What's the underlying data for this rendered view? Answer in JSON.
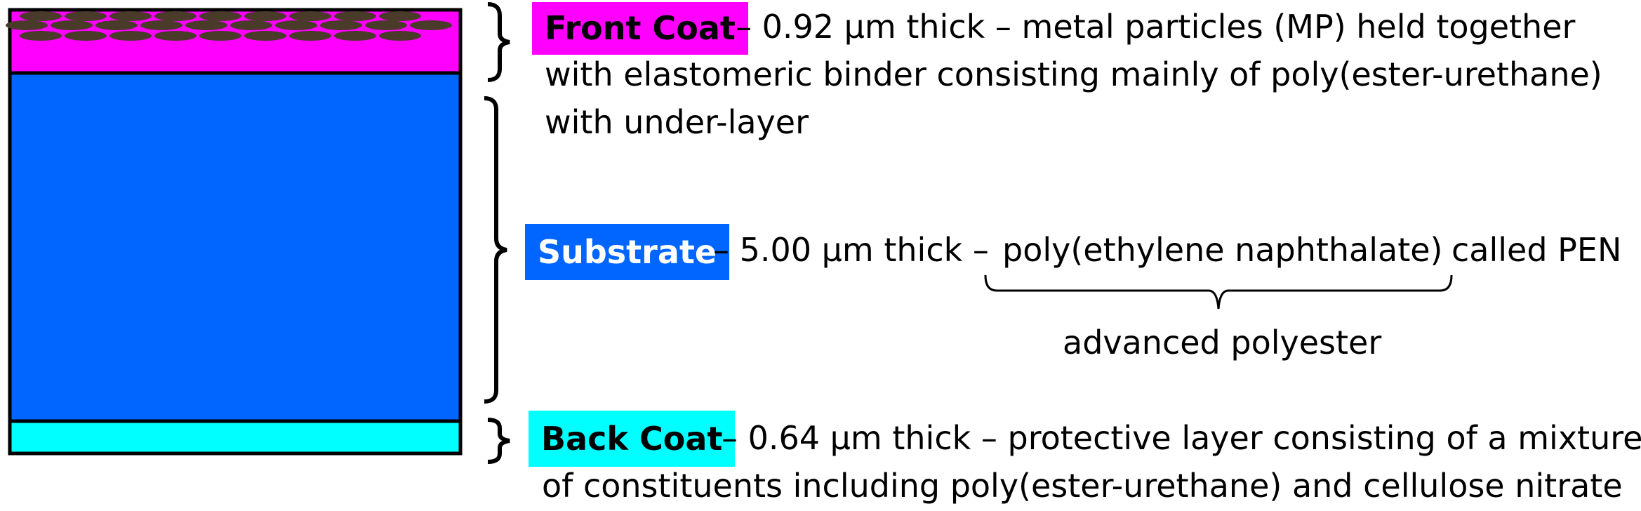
{
  "layers": {
    "front": {
      "label": "Front Coat",
      "line1": "– 0.92 µm thick – metal particles (MP) held together",
      "line2": "with elastomeric binder consisting mainly of poly(ester-urethane)",
      "line3": "with under-layer",
      "color": "#ff00ff",
      "particle_color": "#4a3a2a"
    },
    "substrate": {
      "label": "Substrate",
      "line1_a": "– 5.00 µm thick –",
      "line1_b": "poly(ethylene naphthalate)",
      "line1_c": "called PEN",
      "annotation": "advanced polyester",
      "color": "#0066ff"
    },
    "back": {
      "label": "Back Coat",
      "line1": "– 0.64 µm thick – protective layer consisting of a mixture",
      "line2": "of constituents including poly(ester-urethane) and cellulose nitrate",
      "color": "#00ffff"
    }
  }
}
